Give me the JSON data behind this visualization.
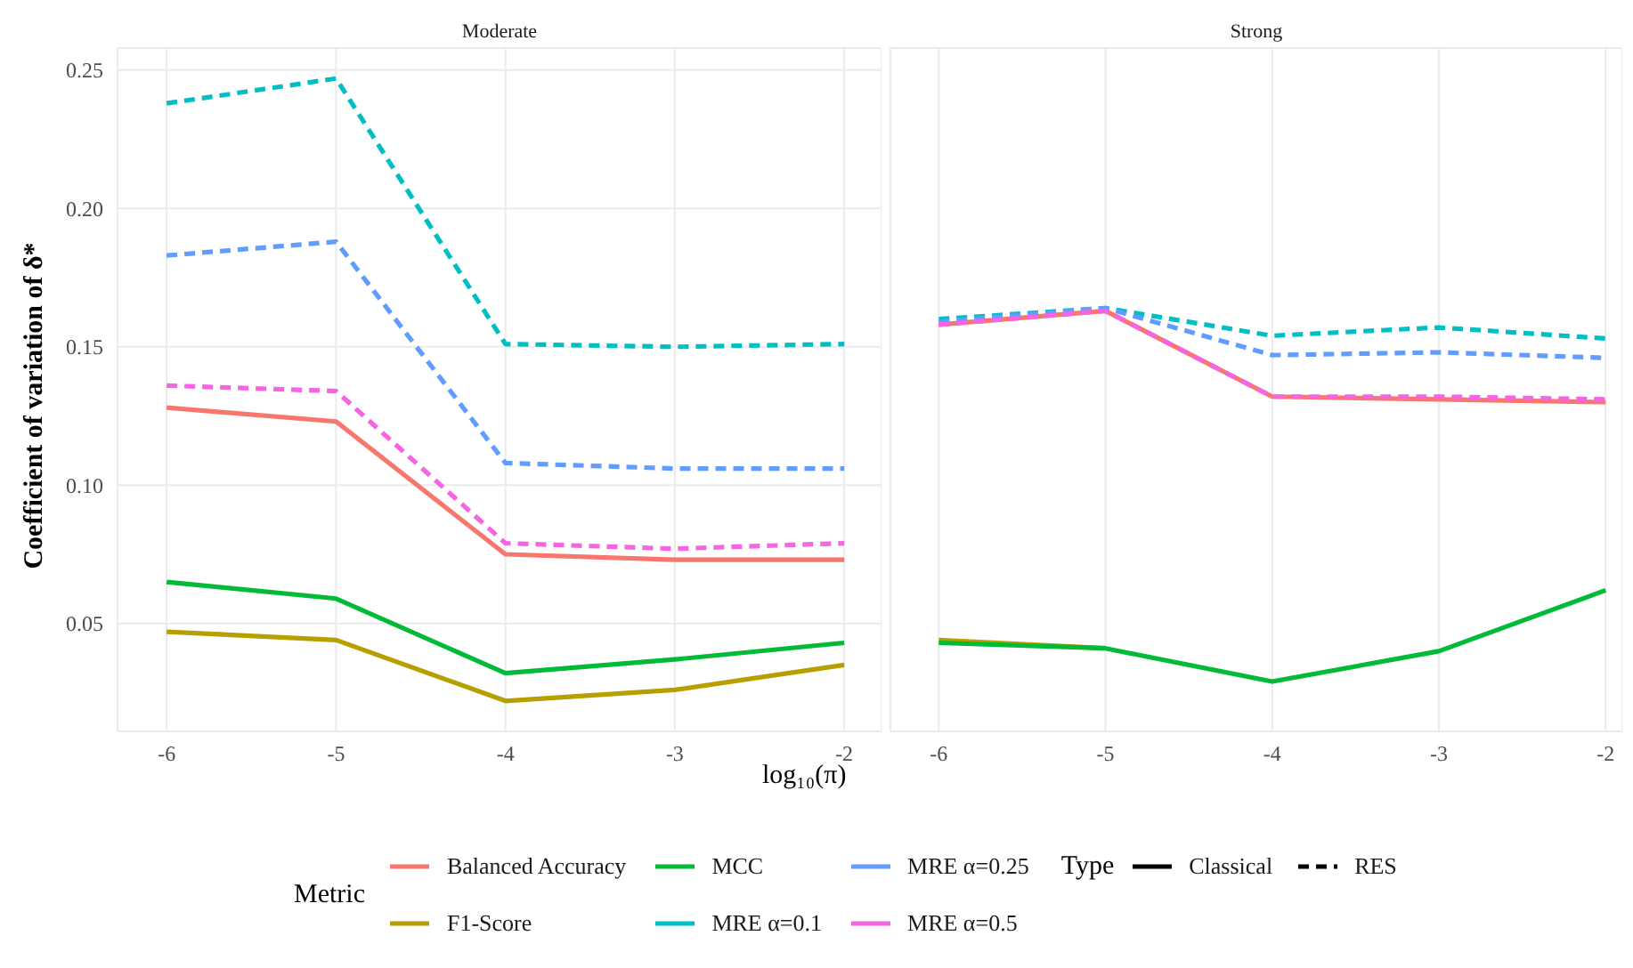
{
  "chart_data": [
    {
      "type": "line",
      "title": "Moderate",
      "xlabel": "log₁₀(π)",
      "ylabel": "Coefficient of variation of δ*",
      "legend_title": "Metric",
      "legend": "bottom",
      "grid": true,
      "x": [
        -6,
        -5,
        -4,
        -3,
        -2
      ],
      "xlim": [
        -6.29,
        -1.78
      ],
      "xticks": [
        -6,
        -5,
        -4,
        -3,
        -2
      ],
      "ylim": [
        0.011,
        0.258
      ],
      "yticks": [
        0.05,
        {
          "value": 0.1,
          "label": "0.10"
        },
        0.15,
        {
          "value": 0.2,
          "label": "0.20"
        },
        0.25
      ],
      "annotations": [
        "Type",
        "Classical",
        "RES"
      ],
      "series": [
        {
          "name": "Balanced Accuracy",
          "color": "#f8766d",
          "line_style": "solid",
          "values": [
            0.128,
            0.123,
            0.075,
            0.073,
            0.073
          ]
        },
        {
          "name": "F1-Score",
          "color": "#b79f00",
          "line_style": "solid",
          "values": [
            0.047,
            0.044,
            0.022,
            0.026,
            0.035
          ]
        },
        {
          "name": "MCC",
          "color": "#00ba38",
          "line_style": "solid",
          "values": [
            0.065,
            0.059,
            0.032,
            0.037,
            0.043
          ]
        },
        {
          "name": "MRE α=0.1",
          "color": "#00bfc4",
          "line_style": "dashed",
          "values": [
            0.238,
            0.247,
            0.151,
            0.15,
            0.151
          ]
        },
        {
          "name": "MRE α=0.25",
          "color": "#619cff",
          "line_style": "dashed",
          "values": [
            0.183,
            0.188,
            0.108,
            0.106,
            0.106
          ]
        },
        {
          "name": "MRE α=0.5",
          "color": "#f564e3",
          "line_style": "dashed",
          "values": [
            0.136,
            0.134,
            0.079,
            0.077,
            0.079
          ]
        }
      ]
    },
    {
      "type": "line",
      "title": "Strong",
      "grid": true,
      "tick_labels": "x",
      "x": [
        -6,
        -5,
        -4,
        -3,
        -2
      ],
      "xlim": [
        -6.29,
        -1.9
      ],
      "xticks": [
        -6,
        -5,
        -4,
        -3,
        -2
      ],
      "ylim": [
        0.011,
        0.258
      ],
      "yticks": [
        0.05,
        0.1,
        0.15,
        0.2,
        0.25
      ],
      "series": [
        {
          "color": "#f8766d",
          "line_style": "solid",
          "values": [
            0.158,
            0.163,
            0.132,
            0.131,
            0.13
          ]
        },
        {
          "color": "#b79f00",
          "line_style": "solid",
          "values": [
            0.044,
            0.041,
            null,
            null,
            null
          ]
        },
        {
          "color": "#00ba38",
          "line_style": "solid",
          "values": [
            0.043,
            0.041,
            0.029,
            0.04,
            0.062
          ]
        },
        {
          "color": "#00bfc4",
          "line_style": "dashed",
          "values": [
            0.16,
            0.164,
            0.154,
            0.157,
            0.153
          ]
        },
        {
          "color": "#619cff",
          "line_style": "dashed",
          "values": [
            0.159,
            0.164,
            0.147,
            0.148,
            0.146
          ]
        },
        {
          "color": "#f564e3",
          "line_style": "dashed",
          "values": [
            0.158,
            0.163,
            0.132,
            0.132,
            0.131
          ]
        }
      ]
    }
  ]
}
